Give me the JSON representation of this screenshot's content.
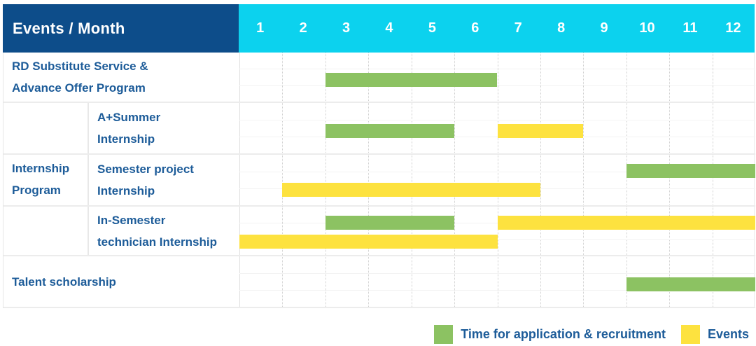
{
  "header": {
    "title": "Events / Month",
    "months": [
      "1",
      "2",
      "3",
      "4",
      "5",
      "6",
      "7",
      "8",
      "9",
      "10",
      "11",
      "12"
    ]
  },
  "colors": {
    "header_navy": "#0d4d8a",
    "header_cyan": "#0cd2ee",
    "bar_green": "#8cc262",
    "bar_yellow": "#fde23f",
    "label_text": "#1d5c99"
  },
  "legend": {
    "items": [
      {
        "key": "application",
        "label": "Time for application & recruitment",
        "color": "#8cc262"
      },
      {
        "key": "events",
        "label": "Events",
        "color": "#fde23f"
      }
    ]
  },
  "chart_data": {
    "type": "gantt",
    "x_unit": "month",
    "x_range": [
      1,
      12
    ],
    "bar_types": {
      "application": {
        "label": "Time for application & recruitment",
        "color": "#8cc262"
      },
      "events": {
        "label": "Events",
        "color": "#fde23f"
      }
    },
    "groups": [
      {
        "id": "internship-program",
        "label": "Internship Program",
        "label_lines": [
          "Internship",
          "Program"
        ],
        "row_ids": [
          "a-summer-internship",
          "semester-project-internship",
          "in-semester-technician-internship"
        ]
      }
    ],
    "rows": [
      {
        "id": "rd-substitute-service-advance-offer-program",
        "label": "RD Substitute Service & Advance Offer Program",
        "label_lines": [
          "RD Substitute Service &",
          "Advance Offer Program"
        ],
        "group": null,
        "bars": [
          {
            "type": "application",
            "start_month": 3,
            "end_month": 6,
            "line": 0
          }
        ]
      },
      {
        "id": "a-summer-internship",
        "label": "A+Summer Internship",
        "label_lines": [
          "A+Summer",
          "Internship"
        ],
        "group": "internship-program",
        "bars": [
          {
            "type": "application",
            "start_month": 3,
            "end_month": 5,
            "line": 0
          },
          {
            "type": "events",
            "start_month": 7,
            "end_month": 8,
            "line": 0
          }
        ]
      },
      {
        "id": "semester-project-internship",
        "label": "Semester project Internship",
        "label_lines": [
          "Semester project",
          "Internship"
        ],
        "group": "internship-program",
        "bars": [
          {
            "type": "application",
            "start_month": 10,
            "end_month": 12,
            "line": 0
          },
          {
            "type": "events",
            "start_month": 2,
            "end_month": 7,
            "line": 1
          }
        ]
      },
      {
        "id": "in-semester-technician-internship",
        "label": "In-Semester technician Internship",
        "label_lines": [
          "In-Semester",
          "technician Internship"
        ],
        "group": "internship-program",
        "bars": [
          {
            "type": "application",
            "start_month": 3,
            "end_month": 5,
            "line": 0
          },
          {
            "type": "events",
            "start_month": 7,
            "end_month": 12,
            "line": 0
          },
          {
            "type": "events",
            "start_month": 1,
            "end_month": 6,
            "line": 1
          }
        ]
      },
      {
        "id": "talent-scholarship",
        "label": "Talent scholarship",
        "label_lines": [
          "Talent scholarship"
        ],
        "group": null,
        "bars": [
          {
            "type": "application",
            "start_month": 10,
            "end_month": 12,
            "line": 0
          }
        ]
      }
    ]
  }
}
